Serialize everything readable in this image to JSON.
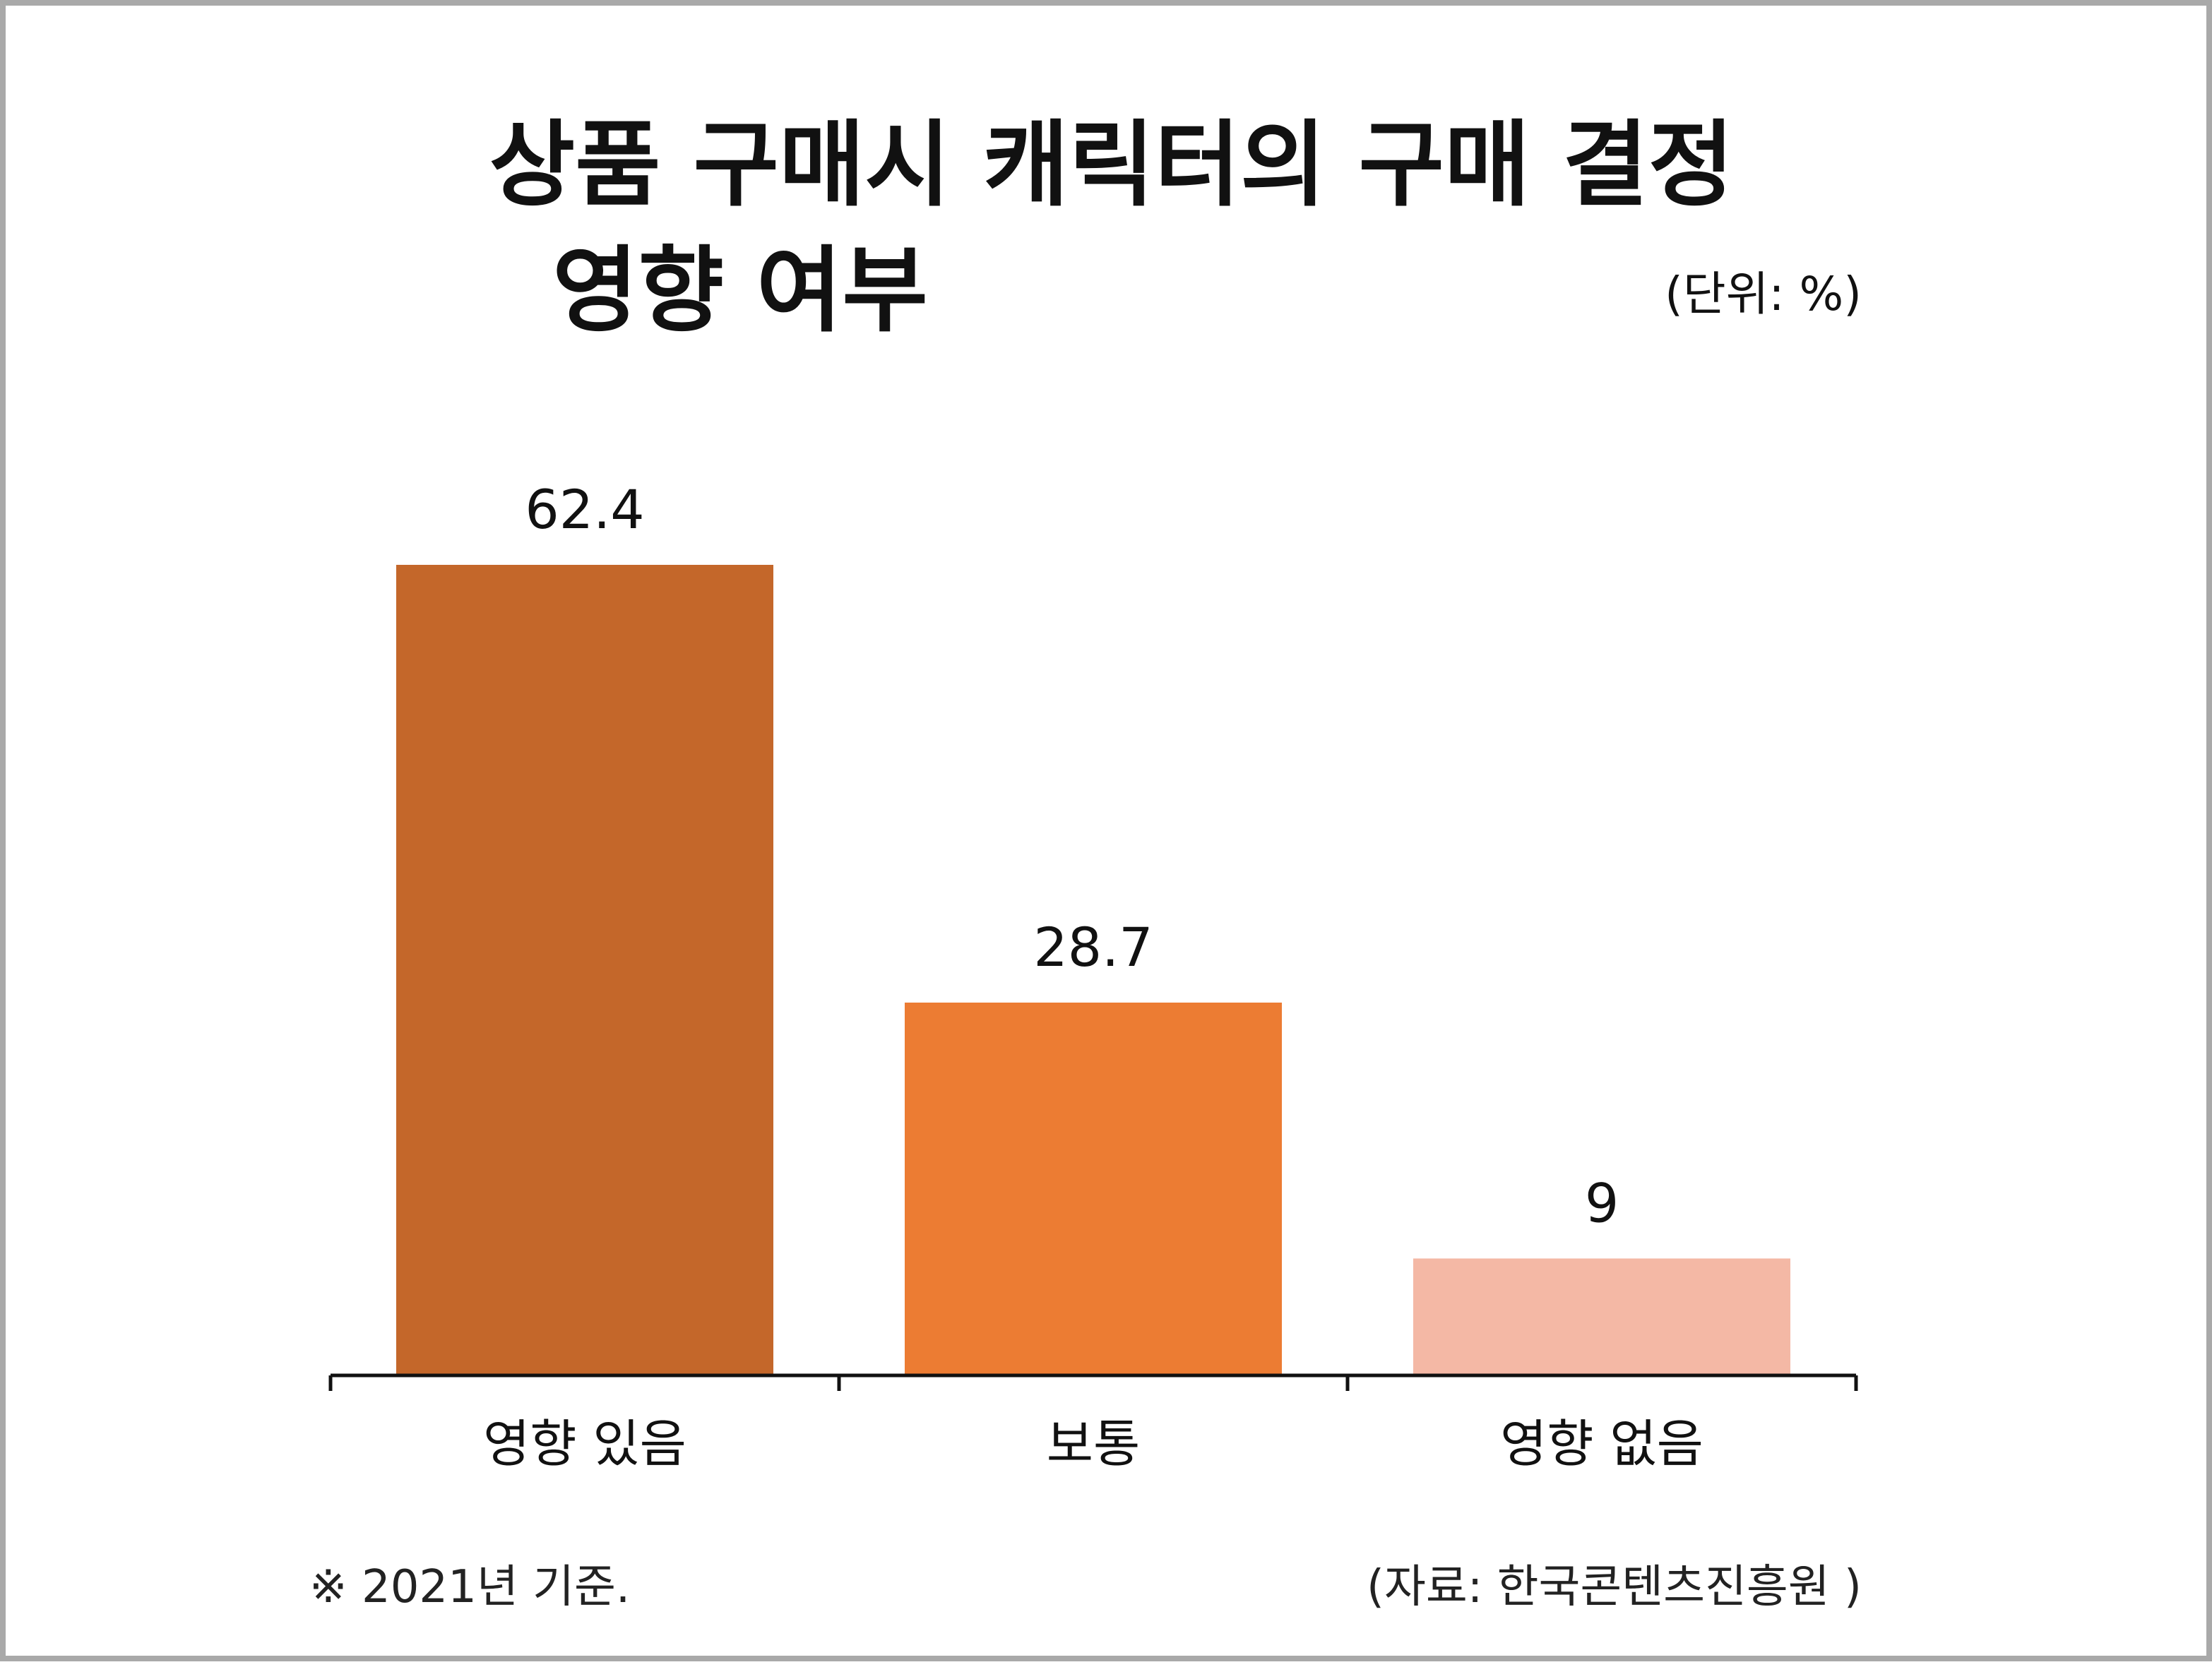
{
  "title_line1": "상품 구매시 캐릭터의 구매 결정",
  "title_line2": "영향 여부",
  "unit": "(단위: %)",
  "note": "※ 2021년 기준.",
  "source": "(자료: 한국콘텐츠진흥원 )",
  "chart_data": {
    "type": "bar",
    "title": "상품 구매시 캐릭터의 구매 결정 영향 여부",
    "unit": "%",
    "categories": [
      "영향 있음",
      "보통",
      "영향 없음"
    ],
    "values": [
      62.4,
      28.7,
      9
    ],
    "value_labels": [
      "62.4",
      "28.7",
      "9"
    ],
    "colors": [
      "#C4672A",
      "#EC7C33",
      "#F4B8A5"
    ],
    "xlabel": "",
    "ylabel": "",
    "grid": false,
    "legend": "none"
  }
}
